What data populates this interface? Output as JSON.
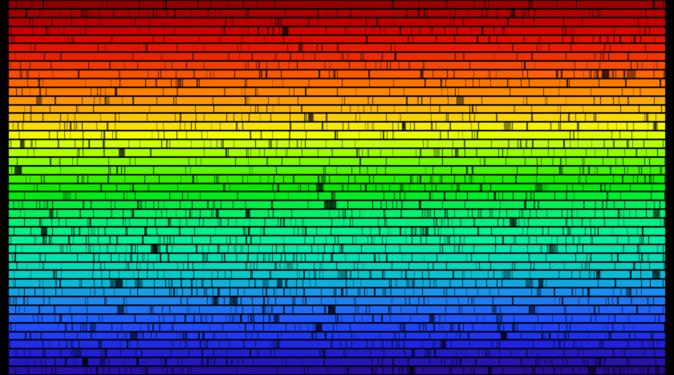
{
  "image": {
    "subject": "solar-spectrum",
    "band_count": 43,
    "background_color": "#000000",
    "color_stops": [
      "#8e0000",
      "#c80000",
      "#ee2000",
      "#ff6a00",
      "#ffb000",
      "#f4ff00",
      "#7cff00",
      "#00e800",
      "#00f070",
      "#00f0a0",
      "#00d8c0",
      "#1890f0",
      "#2050ff",
      "#2020e0",
      "#2a0a90"
    ]
  }
}
